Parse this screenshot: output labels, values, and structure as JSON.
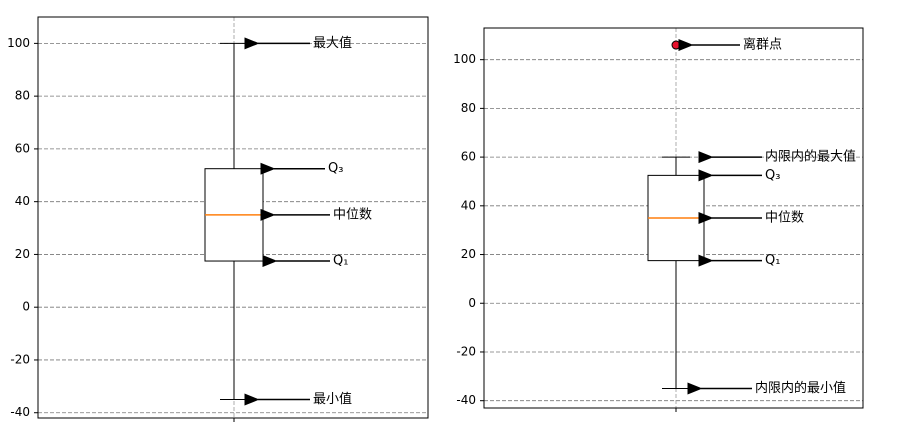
{
  "chart_data": [
    {
      "type": "box",
      "ylim": [
        -42,
        110
      ],
      "yticks": [
        -40,
        -20,
        0,
        20,
        40,
        60,
        80,
        100
      ],
      "grid": true,
      "median_color": "#ff7f0e",
      "boxes": [
        {
          "whislo": -35,
          "q1": 17.5,
          "med": 35,
          "q3": 52.5,
          "whishi": 100
        }
      ],
      "annotations": {
        "whishi": "最大值",
        "q3": "Q₃",
        "med": "中位数",
        "q1": "Q₁",
        "whislo": "最小值"
      }
    },
    {
      "type": "box",
      "ylim": [
        -43,
        113
      ],
      "yticks": [
        -40,
        -20,
        0,
        20,
        40,
        60,
        80,
        100
      ],
      "grid": true,
      "median_color": "#ff7f0e",
      "flier_color": "#e8112d",
      "boxes": [
        {
          "whislo": -35,
          "q1": 17.5,
          "med": 35,
          "q3": 52.5,
          "whishi": 60,
          "fliers": [
            106
          ]
        }
      ],
      "annotations": {
        "fliers": "离群点",
        "whishi": "内限内的最大值",
        "q3": "Q₃",
        "med": "中位数",
        "q1": "Q₁",
        "whislo": "内限内的最小值"
      }
    }
  ]
}
